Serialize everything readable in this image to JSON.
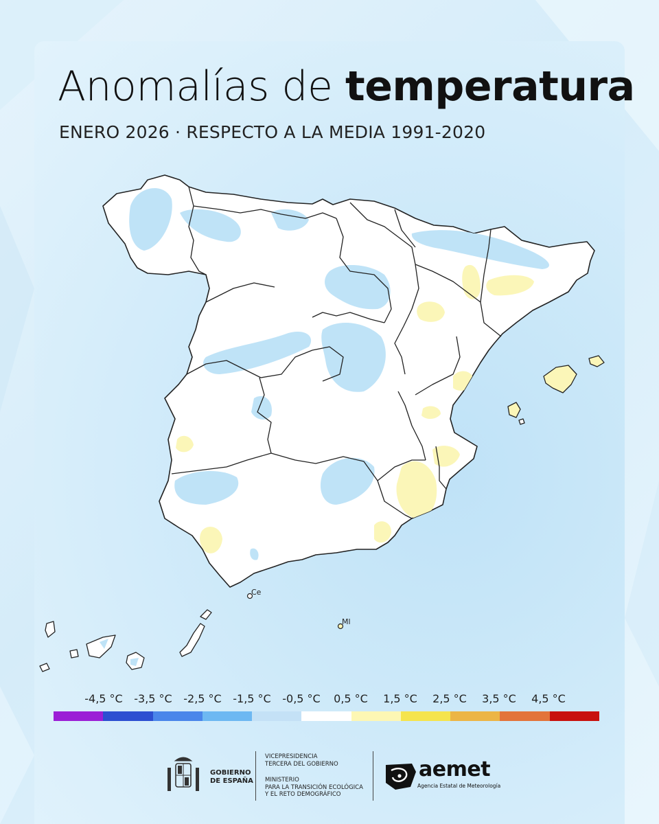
{
  "title": {
    "regular": "Anomalías de",
    "bold": "temperatura"
  },
  "subtitle": "ENERO 2026 · RESPECTO A LA MEDIA 1991-2020",
  "map": {
    "labels": {
      "ceuta": "Ce",
      "melilla": "Ml"
    },
    "colors": {
      "land_normal": "#ffffff",
      "cool_anomaly": "#bfe3f7",
      "warm_anomaly": "#fbf6b8",
      "borders": "#222222"
    }
  },
  "legend": {
    "labels": [
      "-4,5 °C",
      "-3,5 °C",
      "-2,5 °C",
      "-1,5 °C",
      "-0,5 °C",
      "0,5 °C",
      "1,5 °C",
      "2,5 °C",
      "3,5 °C",
      "4,5 °C"
    ],
    "colors": [
      "#9b1fd6",
      "#2d4fd1",
      "#4a86ea",
      "#6db8f2",
      "#c4e1f6",
      "#ffffff",
      "#fdf7b4",
      "#f5e44d",
      "#ecb545",
      "#e3743a",
      "#c8120e"
    ]
  },
  "footer": {
    "gobierno": [
      "GOBIERNO",
      "DE ESPAÑA"
    ],
    "vicepresidencia": [
      "VICEPRESIDENCIA",
      "TERCERA DEL GOBIERNO"
    ],
    "ministerio": [
      "MINISTERIO",
      "PARA LA TRANSICIÓN ECOLÓGICA",
      "Y EL RETO DEMOGRÁFICO"
    ],
    "aemet": "aemet",
    "aemet_full": "Agencia Estatal de Meteorología"
  }
}
